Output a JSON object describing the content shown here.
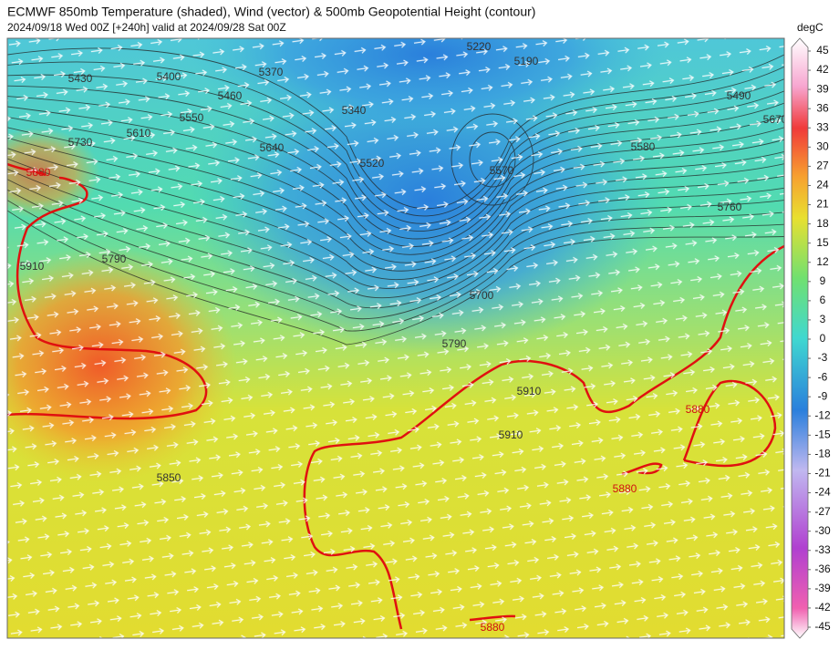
{
  "header": {
    "title": "ECMWF 850mb Temperature (shaded), Wind (vector) & 500mb Geopotential Height (contour)",
    "subtitle": "2024/09/18 Wed 00Z [+240h] valid at 2024/09/28 Sat 00Z"
  },
  "colorbar": {
    "unit": "degC",
    "ticks": [
      45,
      42,
      39,
      36,
      33,
      30,
      27,
      24,
      21,
      18,
      15,
      12,
      9,
      6,
      3,
      0,
      -3,
      -6,
      -9,
      -12,
      -15,
      -18,
      -21,
      -24,
      -27,
      -30,
      -33,
      -36,
      -39,
      -42,
      -45
    ]
  },
  "contour_labels": [
    "5430",
    "5400",
    "5460",
    "5550",
    "5610",
    "5730",
    "5640",
    "5880",
    "5910",
    "5790",
    "5370",
    "5340",
    "5220",
    "5190",
    "5520",
    "5570",
    "5580",
    "5490",
    "5670",
    "5760",
    "5700",
    "5790",
    "5910",
    "5910",
    "5880",
    "5880",
    "5850",
    "5880"
  ]
}
